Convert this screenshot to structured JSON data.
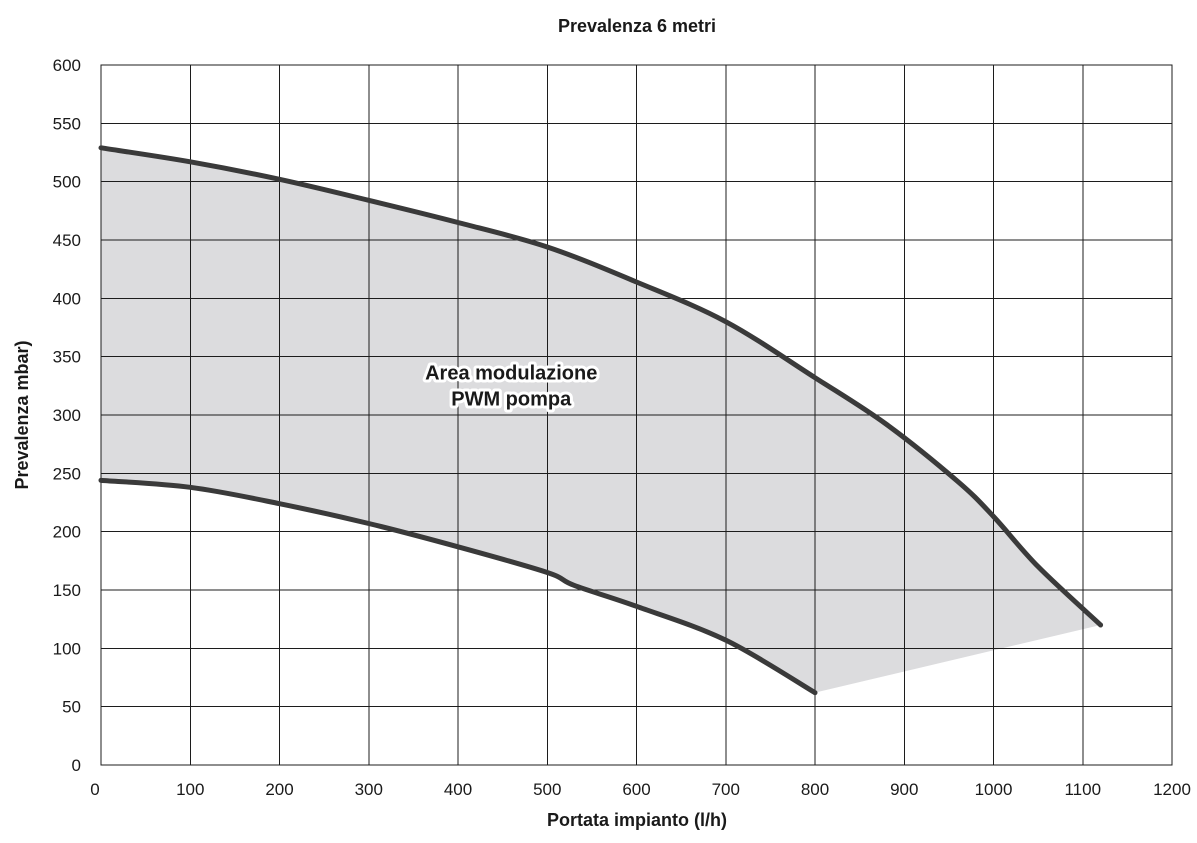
{
  "chart_data": {
    "type": "area",
    "title": "Prevalenza 6 metri",
    "xlabel": "Portata impianto (l/h)",
    "ylabel": "Prevalenza mbar)",
    "xlim": [
      0,
      1200
    ],
    "ylim": [
      0,
      600
    ],
    "x_ticks": [
      0,
      100,
      200,
      300,
      400,
      500,
      600,
      700,
      800,
      900,
      1000,
      1100,
      1200
    ],
    "y_ticks": [
      0,
      50,
      100,
      150,
      200,
      250,
      300,
      350,
      400,
      450,
      500,
      550,
      600
    ],
    "grid": true,
    "legend": "none",
    "series": [
      {
        "role": "upper-curve",
        "x": [
          0,
          100,
          200,
          300,
          400,
          500,
          600,
          700,
          800,
          880,
          960,
          1000,
          1050,
          1120
        ],
        "y": [
          529,
          517,
          502,
          484,
          465,
          444,
          414,
          380,
          332,
          292,
          243,
          213,
          170,
          120
        ]
      },
      {
        "role": "lower-curve",
        "x": [
          0,
          100,
          200,
          300,
          400,
          500,
          530,
          600,
          700,
          800
        ],
        "y": [
          244,
          238,
          224,
          207,
          187,
          165,
          154,
          136,
          107,
          62
        ]
      }
    ],
    "fill_between": true,
    "annotations": [
      {
        "line1": "Area modulazione",
        "line2": "PWM pompa",
        "x": 500,
        "y": 320
      }
    ],
    "colors": {
      "curve": "#3a3a3a",
      "fill": "#dcdcde",
      "grid": "#1c1c1c",
      "text": "#1a1a1a"
    }
  }
}
